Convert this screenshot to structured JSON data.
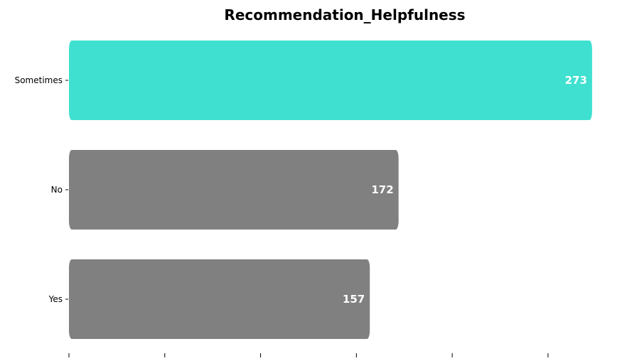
{
  "chart_data": {
    "type": "bar",
    "orientation": "horizontal",
    "title": "Recommendation_Helpfulness",
    "xlabel": "",
    "ylabel": "",
    "categories": [
      "Sometimes",
      "No",
      "Yes"
    ],
    "values": [
      273,
      172,
      157
    ],
    "xlim": [
      0,
      276
    ],
    "x_ticks": [
      0,
      50,
      100,
      150,
      200,
      250
    ],
    "x_tick_labels_visible": false,
    "grid": false,
    "legend": "none",
    "colors": {
      "highlight": "#40e0d0",
      "default": "#808080",
      "label_text": "#ffffff"
    },
    "highlight_index": 0
  }
}
